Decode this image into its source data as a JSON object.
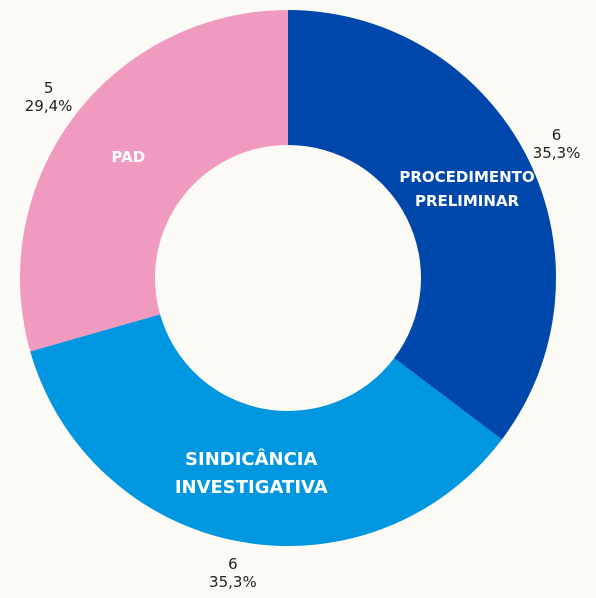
{
  "chart_data": {
    "type": "donut",
    "categories": [
      "PROCEDIMENTO PRELIMINAR",
      "SINDICÂNCIA INVESTIGATIVA",
      "PAD"
    ],
    "values": [
      6,
      6,
      5
    ],
    "percentages": [
      35.3,
      35.3,
      29.4
    ],
    "percentage_labels": [
      "35,3%",
      "35,3%",
      "29,4%"
    ],
    "colors": [
      "#0047ab",
      "#0096e0",
      "#f09abf"
    ]
  }
}
